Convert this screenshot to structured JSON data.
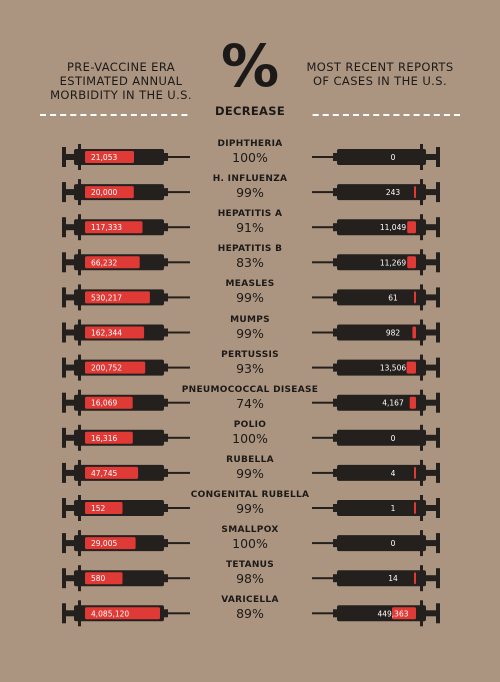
{
  "header": {
    "left": "PRE-VACCINE ERA ESTIMATED ANNUAL MORBIDITY IN THE U.S.",
    "center_symbol": "%",
    "center_label": "DECREASE",
    "right": "MOST RECENT REPORTS OF CASES IN THE U.S."
  },
  "colors": {
    "background": "#ac9580",
    "syringe": "#24201e",
    "fill": "#e03a36",
    "divider": "#ffffff"
  },
  "chart_data": {
    "type": "bar",
    "title": "",
    "columns": [
      "Pre-vaccine era estimated annual morbidity in the U.S.",
      "% Decrease",
      "Most recent reports of cases in the U.S."
    ],
    "categories": [
      "DIPHTHERIA",
      "H. INFLUENZA",
      "HEPATITIS A",
      "HEPATITIS B",
      "MEASLES",
      "MUMPS",
      "PERTUSSIS",
      "PNEUMOCOCCAL DISEASE",
      "POLIO",
      "RUBELLA",
      "CONGENITAL RUBELLA",
      "SMALLPOX",
      "TETANUS",
      "VARICELLA"
    ],
    "pre_vaccine_labels": [
      "21,053",
      "20,000",
      "117,333",
      "66,232",
      "530,217",
      "162,344",
      "200,752",
      "16,069",
      "16,316",
      "47,745",
      "152",
      "29,005",
      "580",
      "4,085,120"
    ],
    "pre_vaccine_values": [
      21053,
      20000,
      117333,
      66232,
      530217,
      162344,
      200752,
      16069,
      16316,
      47745,
      152,
      29005,
      580,
      4085120
    ],
    "decrease_labels": [
      "100%",
      "99%",
      "91%",
      "83%",
      "99%",
      "99%",
      "93%",
      "74%",
      "100%",
      "99%",
      "99%",
      "100%",
      "98%",
      "89%"
    ],
    "decrease_values": [
      100,
      99,
      91,
      83,
      99,
      99,
      93,
      74,
      100,
      99,
      99,
      100,
      98,
      89
    ],
    "recent_labels": [
      "0",
      "243",
      "11,049",
      "11,269",
      "61",
      "982",
      "13,506",
      "4,167",
      "0",
      "4",
      "1",
      "0",
      "14",
      "449,363"
    ],
    "recent_values": [
      0,
      243,
      11049,
      11269,
      61,
      982,
      13506,
      4167,
      0,
      4,
      1,
      0,
      14,
      449363
    ]
  }
}
